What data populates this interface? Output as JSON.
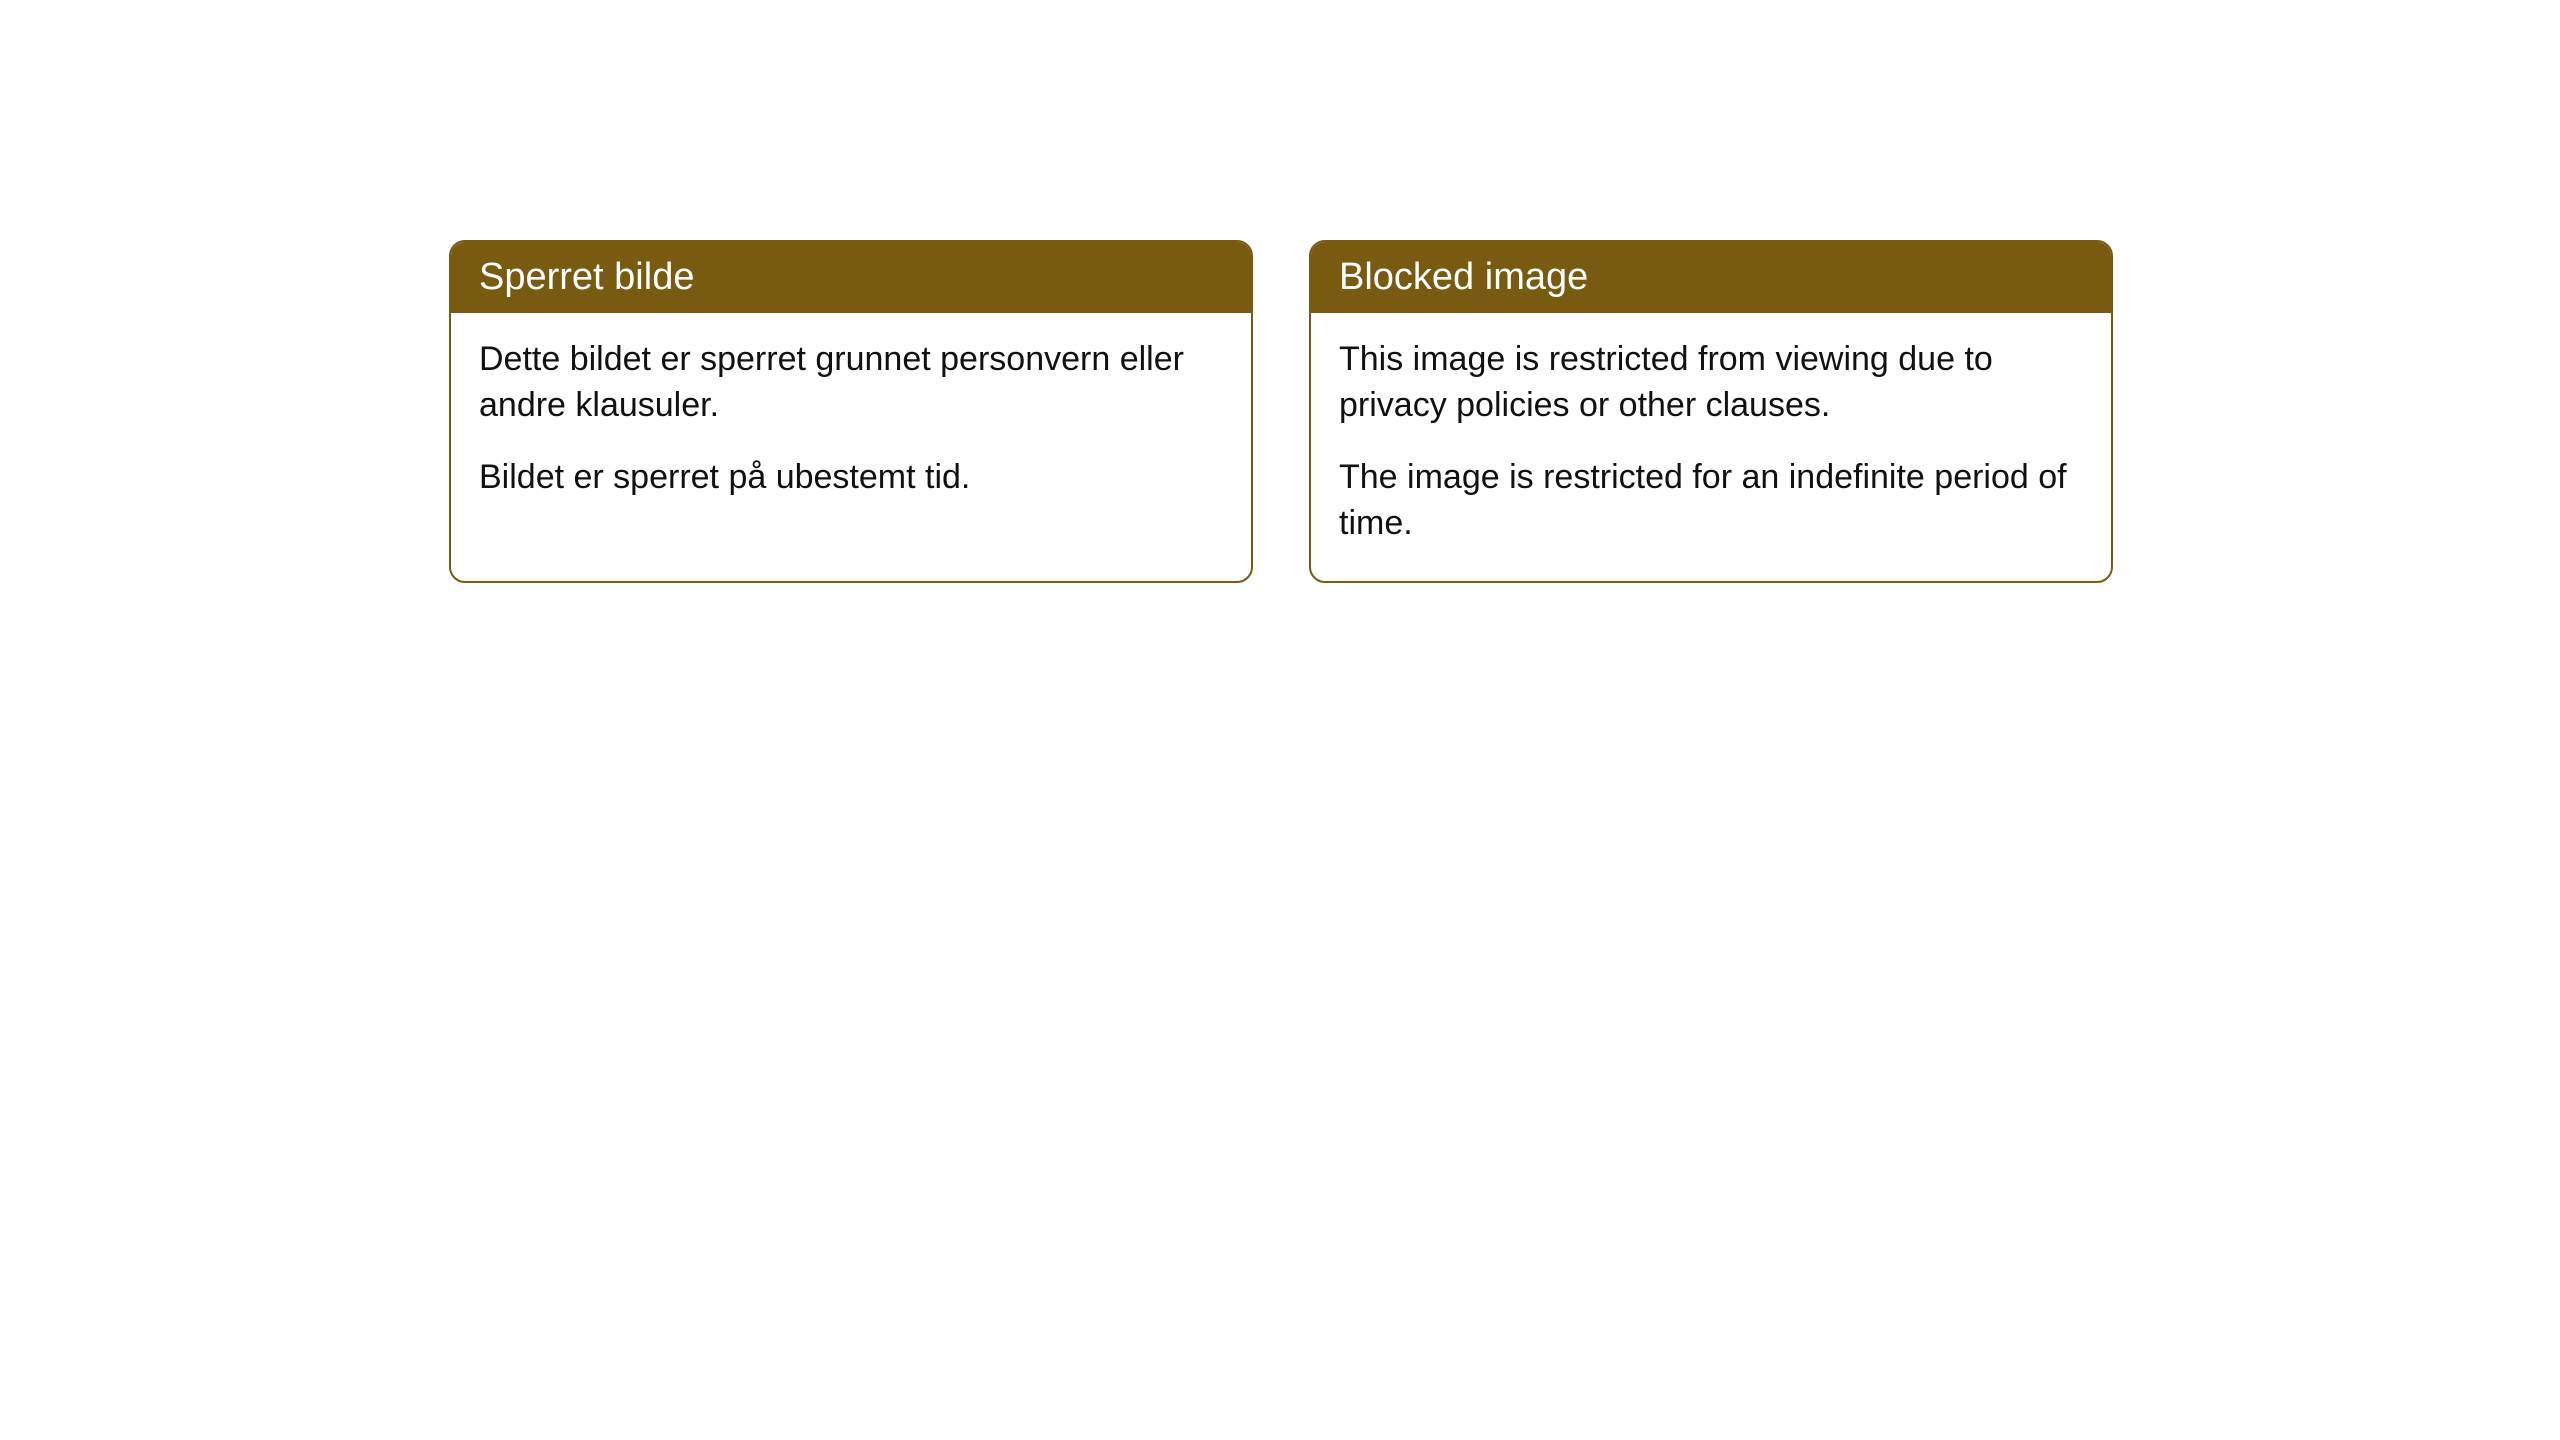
{
  "cards": [
    {
      "title": "Sperret bilde",
      "paragraph1": "Dette bildet er sperret grunnet personvern eller andre klausuler.",
      "paragraph2": "Bildet er sperret på ubestemt tid."
    },
    {
      "title": "Blocked image",
      "paragraph1": "This image is restricted from viewing due to privacy policies or other clauses.",
      "paragraph2": "The image is restricted for an indefinite period of time."
    }
  ],
  "style": {
    "header_bg_color": "#785a10",
    "header_text_color": "#ffffff",
    "border_color": "#785a10",
    "body_bg_color": "#ffffff",
    "body_text_color": "#111111",
    "border_radius": 16,
    "header_fontsize": 38,
    "body_fontsize": 34
  }
}
